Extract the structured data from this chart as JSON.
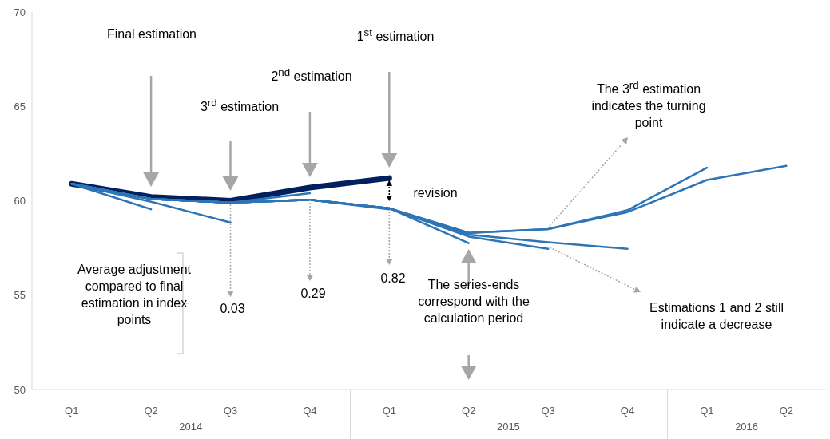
{
  "chart_data": {
    "type": "line",
    "categories": [
      "Q1",
      "Q2",
      "Q3",
      "Q4",
      "Q1",
      "Q2",
      "Q3",
      "Q4",
      "Q1",
      "Q2"
    ],
    "ylim": [
      50,
      70
    ],
    "yticks": [
      50,
      55,
      60,
      65,
      70
    ],
    "grid": false,
    "legend": false,
    "marker": "none",
    "line_style": "solid",
    "series": [
      {
        "color": "#002060",
        "values": [
          60.9,
          60.2,
          60.0,
          60.7,
          61.2,
          null,
          null,
          null,
          null,
          null
        ]
      },
      {
        "color": "#2e75b6",
        "values": [
          60.9,
          59.55,
          null,
          null,
          null,
          null,
          null,
          null,
          null,
          null
        ]
      },
      {
        "color": "#2e75b6",
        "values": [
          60.9,
          59.95,
          58.85,
          null,
          null,
          null,
          null,
          null,
          null,
          null
        ]
      },
      {
        "color": "#2e75b6",
        "values": [
          60.9,
          60.1,
          59.9,
          60.4,
          null,
          null,
          null,
          null,
          null,
          null
        ]
      },
      {
        "color": "#2e75b6",
        "values": [
          60.9,
          60.1,
          59.9,
          60.05,
          59.55,
          null,
          null,
          null,
          null,
          null
        ]
      },
      {
        "color": "#2e75b6",
        "values": [
          60.9,
          60.1,
          59.9,
          60.05,
          59.6,
          57.75,
          null,
          null,
          null,
          null
        ]
      },
      {
        "color": "#2e75b6",
        "values": [
          60.9,
          60.1,
          59.9,
          60.05,
          59.6,
          58.1,
          57.45,
          null,
          null,
          null
        ]
      },
      {
        "color": "#2e75b6",
        "values": [
          60.9,
          60.1,
          59.9,
          60.05,
          59.6,
          58.2,
          57.8,
          57.45,
          null,
          null
        ]
      },
      {
        "color": "#2e75b6",
        "values": [
          60.9,
          60.1,
          59.9,
          60.05,
          59.6,
          58.3,
          58.5,
          59.5,
          61.75,
          null
        ]
      },
      {
        "color": "#2e75b6",
        "values": [
          60.9,
          60.1,
          59.9,
          60.05,
          59.6,
          58.3,
          58.5,
          59.4,
          61.1,
          61.85
        ]
      }
    ],
    "annotations": [
      "Final estimation",
      "3$^{rd}$ estimation",
      "2$^{nd}$ estimation",
      "1$^{st}$ estimation",
      "The 3$^{rd}$ estimation indicates the turning point",
      "revision",
      "0.03",
      "0.29",
      "0.82",
      "Average adjustment compared to final estimation in index points",
      "The series-ends correspond with the calculation period",
      "Estimations 1 and 2 still indicate a decrease",
      "2014",
      "2015",
      "2016"
    ]
  }
}
